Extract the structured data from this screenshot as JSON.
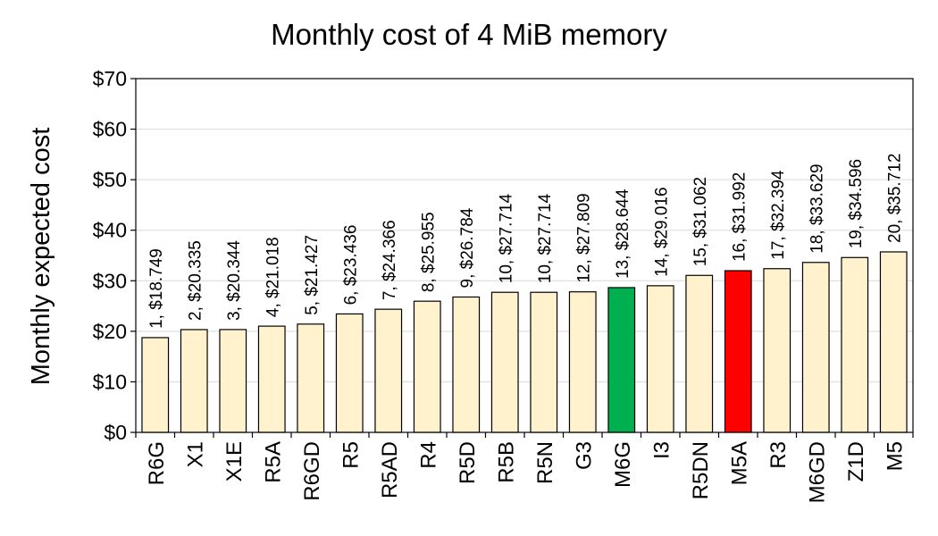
{
  "chart_data": {
    "type": "bar",
    "title": "Monthly cost of 4 MiB memory",
    "xlabel": "",
    "ylabel": "Monthly expected  cost",
    "ylim": [
      0,
      70
    ],
    "yticks": [
      0,
      10,
      20,
      30,
      40,
      50,
      60,
      70
    ],
    "ytick_labels": [
      "$0",
      "$10",
      "$20",
      "$30",
      "$40",
      "$50",
      "$60",
      "$70"
    ],
    "grid": true,
    "categories": [
      "R6G",
      "X1",
      "X1E",
      "R5A",
      "R6GD",
      "R5",
      "R5AD",
      "R4",
      "R5D",
      "R5B",
      "R5N",
      "G3",
      "M6G",
      "I3",
      "R5DN",
      "M5A",
      "R3",
      "M6GD",
      "Z1D",
      "M5"
    ],
    "values": [
      18.749,
      20.335,
      20.344,
      21.018,
      21.427,
      23.436,
      24.366,
      25.955,
      26.784,
      27.714,
      27.714,
      27.809,
      28.644,
      29.016,
      31.062,
      31.992,
      32.394,
      33.629,
      34.596,
      35.712
    ],
    "data_labels": [
      "1, $18.749",
      "2, $20.335",
      "3, $20.344",
      "4, $21.018",
      "5, $21.427",
      "6, $23.436",
      "7, $24.366",
      "8, $25.955",
      "9, $26.784",
      "10, $27.714",
      "10, $27.714",
      "12, $27.809",
      "13, $28.644",
      "14, $29.016",
      "15, $31.062",
      "16, $31.992",
      "17, $32.394",
      "18, $33.629",
      "19, $34.596",
      "20, $35.712"
    ],
    "colors": {
      "default_bar": "#fff2cc",
      "highlight": {
        "M6G": "#00b050",
        "M5A": "#ff0000"
      }
    }
  }
}
